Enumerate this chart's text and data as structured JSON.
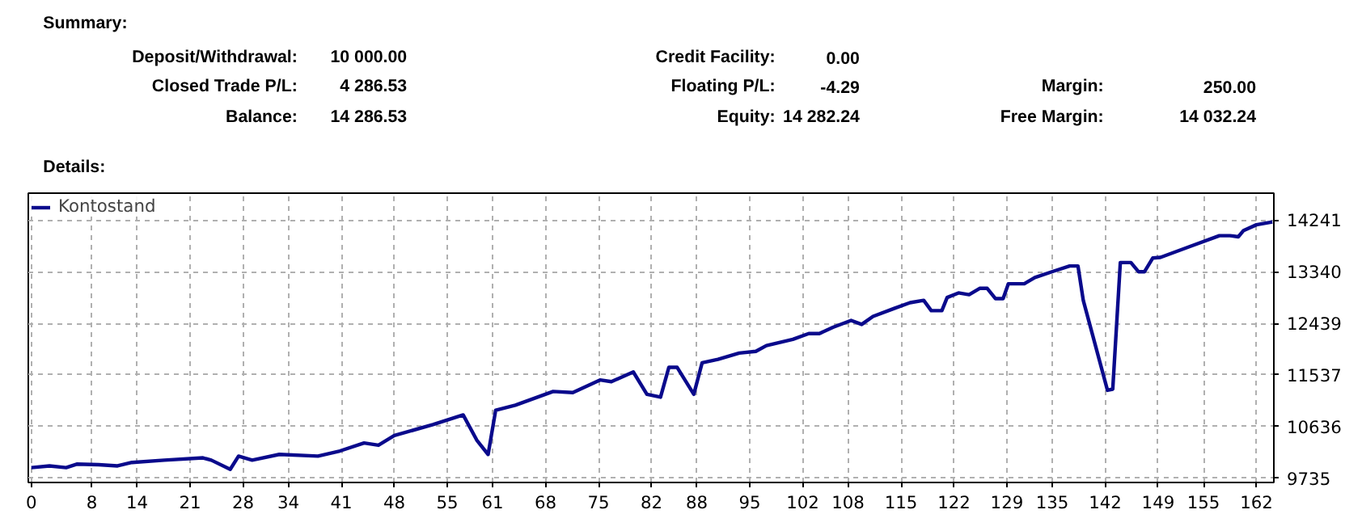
{
  "chart_data": {
    "type": "line",
    "annotations": [
      "Summary:",
      "Deposit/Withdrawal:",
      "10 000.00",
      "Credit Facility:",
      "0.00",
      "Closed Trade P/L:",
      "4 286.53",
      "Floating P/L:",
      "-4.29",
      "Margin:",
      "250.00",
      "Balance:",
      "14 286.53",
      "Equity:",
      "14 282.24",
      "Free Margin:",
      "14 032.24",
      "Details:"
    ],
    "x": [
      0,
      2.4,
      4.6,
      6,
      8.9,
      11.4,
      13.3,
      17.6,
      22.7,
      23.8,
      26.3,
      27.4,
      29.2,
      32.8,
      37.9,
      40.8,
      44,
      45.9,
      48,
      53.1,
      57.1,
      58.9,
      60.4,
      61.4,
      64,
      69,
      71.6,
      75.2,
      76.7,
      79.6,
      81.4,
      83.2,
      84.3,
      85.4,
      87.6,
      88.7,
      90.8,
      93.6,
      95.8,
      97.2,
      100.7,
      102.8,
      104.2,
      106,
      108.4,
      109.8,
      111.3,
      114.1,
      116.2,
      118,
      119,
      120.4,
      121.1,
      122.6,
      124,
      125.4,
      126.4,
      127.5,
      128.5,
      129.2,
      131.3,
      132.7,
      135.2,
      137.3,
      138.4,
      139.1,
      142.3,
      143,
      144,
      145.4,
      146.4,
      147.2,
      148.3,
      149.3,
      153.2,
      157.1,
      158.5,
      159.6,
      160.3,
      162,
      164.1
    ],
    "series": [
      {
        "name": "Kontostand",
        "color": "#0a0a8c",
        "values": [
          9920,
          9950,
          9920,
          9980,
          9970,
          9950,
          10010,
          10050,
          10090,
          10050,
          9890,
          10120,
          10050,
          10150,
          10120,
          10210,
          10350,
          10310,
          10480,
          10670,
          10840,
          10400,
          10150,
          10920,
          11010,
          11250,
          11230,
          11450,
          11420,
          11590,
          11200,
          11150,
          11670,
          11670,
          11200,
          11750,
          11810,
          11920,
          11950,
          12050,
          12160,
          12260,
          12260,
          12370,
          12490,
          12420,
          12560,
          12700,
          12800,
          12840,
          12660,
          12660,
          12890,
          12970,
          12940,
          13050,
          13050,
          12870,
          12870,
          13130,
          13130,
          13240,
          13350,
          13440,
          13440,
          12840,
          11270,
          11290,
          13500,
          13500,
          13340,
          13340,
          13580,
          13590,
          13780,
          13970,
          13970,
          13950,
          14060,
          14160,
          14210
        ]
      }
    ],
    "xlim": [
      -0.4,
      164.3
    ],
    "ylim": [
      9660,
      14712
    ],
    "xticks": [
      0,
      8,
      14,
      21,
      28,
      34,
      41,
      48,
      55,
      61,
      68,
      75,
      82,
      88,
      95,
      102,
      108,
      115,
      122,
      129,
      135,
      142,
      149,
      155,
      162
    ],
    "yticks": [
      9735,
      10636,
      11537,
      12439,
      13340,
      14241
    ],
    "grid": true,
    "legend": "top left",
    "marker": "none",
    "line_style": "solid"
  }
}
